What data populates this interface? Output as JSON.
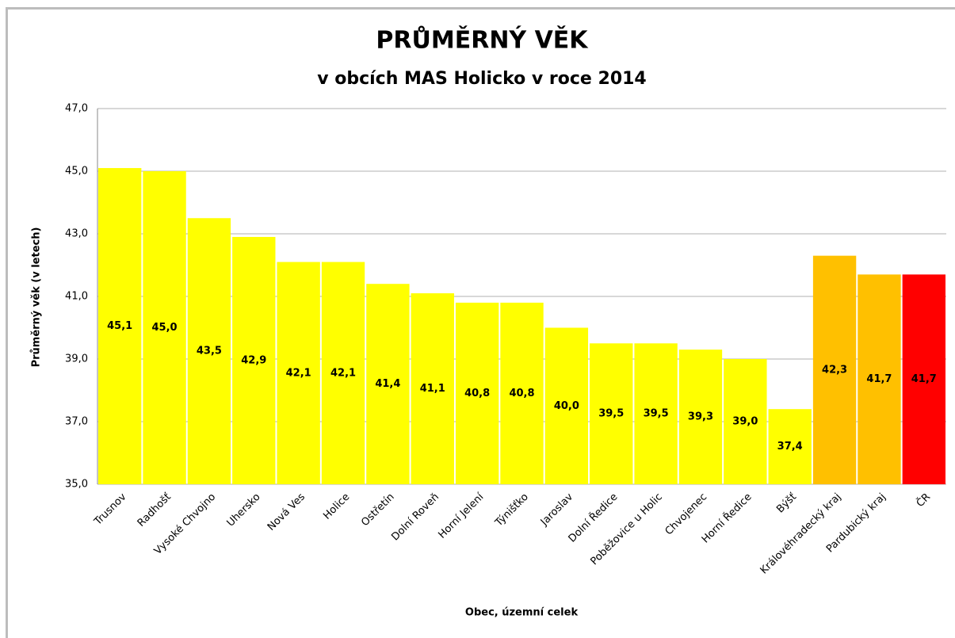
{
  "chart_data": {
    "type": "bar",
    "title": "PRŮMĚRNÝ VĚK",
    "subtitle": "v obcích MAS Holicko v roce 2014",
    "y_label": "Průměrný věk (v letech)",
    "x_label": "Obec, územní celek",
    "categories": [
      "Trusnov",
      "Radhošť",
      "Vysoké Chvojno",
      "Uhersko",
      "Nová Ves",
      "Holice",
      "Ostřetín",
      "Dolní Roveň",
      "Horní Jelení",
      "Týnišťko",
      "Jaroslav",
      "Dolní Ředice",
      "Poběžovice u Holic",
      "Chvojenec",
      "Horní Ředice",
      "Býšť",
      "Královéhradecký kraj",
      "Pardubický kraj",
      "ČR"
    ],
    "values": [
      45.1,
      45.0,
      43.5,
      42.9,
      42.1,
      42.1,
      41.4,
      41.1,
      40.8,
      40.8,
      40.0,
      39.5,
      39.5,
      39.3,
      39.0,
      37.4,
      42.3,
      41.7,
      41.7
    ],
    "value_labels": [
      "45,1",
      "45,0",
      "43,5",
      "42,9",
      "42,1",
      "42,1",
      "41,4",
      "41,1",
      "40,8",
      "40,8",
      "40,0",
      "39,5",
      "39,5",
      "39,3",
      "39,0",
      "37,4",
      "42,3",
      "41,7",
      "41,7"
    ],
    "colors": [
      "#ffff00",
      "#ffff00",
      "#ffff00",
      "#ffff00",
      "#ffff00",
      "#ffff00",
      "#ffff00",
      "#ffff00",
      "#ffff00",
      "#ffff00",
      "#ffff00",
      "#ffff00",
      "#ffff00",
      "#ffff00",
      "#ffff00",
      "#ffff00",
      "#ffc000",
      "#ffc000",
      "#ff0000"
    ],
    "ylim": [
      35,
      47
    ],
    "yticks": [
      {
        "value": 35,
        "label": "35,0"
      },
      {
        "value": 37,
        "label": "37,0"
      },
      {
        "value": 39,
        "label": "39,0"
      },
      {
        "value": 41,
        "label": "41,0"
      },
      {
        "value": 43,
        "label": "43,0"
      },
      {
        "value": 45,
        "label": "45,0"
      },
      {
        "value": 47,
        "label": "47,0"
      }
    ],
    "grid": true
  }
}
